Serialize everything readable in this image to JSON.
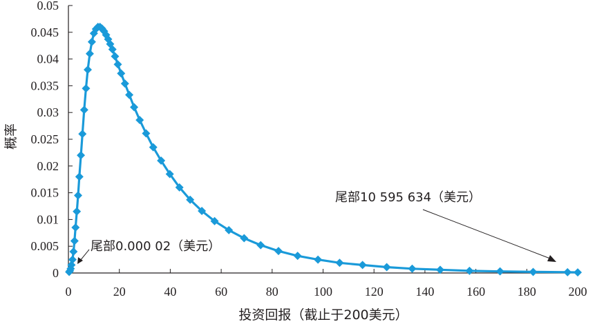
{
  "chart_data": {
    "type": "line",
    "xlabel": "投资回报（截止于200美元）",
    "ylabel": "概率",
    "xlim": [
      0,
      200
    ],
    "ylim": [
      0,
      0.05
    ],
    "x_ticks": [
      "0",
      "20",
      "40",
      "60",
      "80",
      "100",
      "120",
      "140",
      "160",
      "180",
      "200"
    ],
    "y_ticks": [
      "0",
      "0.005",
      "0.01",
      "0.015",
      "0.02",
      "0.025",
      "0.03",
      "0.035",
      "0.04",
      "0.045",
      "0.05"
    ],
    "grid": false,
    "marker": "diamond",
    "color": "#1a9ad9",
    "series": [
      {
        "x": [
          0.3,
          0.6,
          0.9,
          1.2,
          1.6,
          2.0,
          2.4,
          2.8,
          3.3,
          3.8,
          4.3,
          4.9,
          5.5,
          6.2,
          6.9,
          7.6,
          8.4,
          9.2,
          10.0,
          10.8,
          11.6,
          12.4,
          13.2,
          14.0,
          14.8,
          15.6,
          16.4,
          17.3,
          18.3,
          19.4,
          20.7,
          22.2,
          23.9,
          25.8,
          28.0,
          30.5,
          33.3,
          36.4,
          39.8,
          43.6,
          47.8,
          52.4,
          57.4,
          63.0,
          69.0,
          75.5,
          82.5,
          90.0,
          98.0,
          106.5,
          115.5,
          125.0,
          135.0,
          146.0,
          157.5,
          169.5,
          182.5,
          196.0,
          200.0
        ],
        "y": [
          0.0002,
          0.0004,
          0.0008,
          0.0015,
          0.0025,
          0.004,
          0.006,
          0.0085,
          0.0115,
          0.0145,
          0.018,
          0.022,
          0.026,
          0.0305,
          0.0345,
          0.038,
          0.041,
          0.0432,
          0.0448,
          0.0456,
          0.046,
          0.046,
          0.0457,
          0.0452,
          0.0445,
          0.0437,
          0.0428,
          0.0418,
          0.0405,
          0.039,
          0.0373,
          0.0354,
          0.0333,
          0.031,
          0.0286,
          0.0261,
          0.0235,
          0.021,
          0.0185,
          0.016,
          0.0137,
          0.0116,
          0.0097,
          0.008,
          0.0065,
          0.0052,
          0.0041,
          0.0032,
          0.0025,
          0.0019,
          0.0015,
          0.0011,
          0.0008,
          0.0006,
          0.0004,
          0.0003,
          0.0002,
          0.00015,
          0.00012
        ]
      }
    ],
    "annotations": [
      {
        "label": "尾部0.000 02（美元）",
        "position": "lower-left tail"
      },
      {
        "label": "尾部10 595 634（美元）",
        "position": "upper-right tail"
      }
    ]
  }
}
